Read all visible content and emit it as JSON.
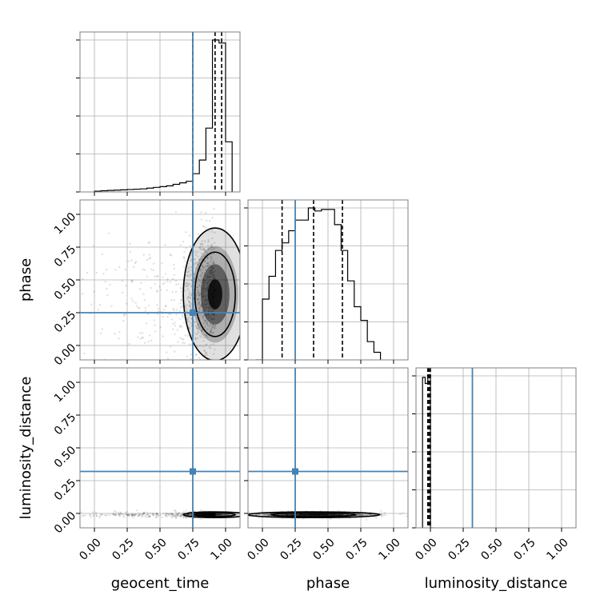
{
  "chart_data": {
    "type": "corner",
    "parameters": [
      "geocent_time",
      "phase",
      "luminosity_distance"
    ],
    "axis_labels": {
      "geocent_time": "geocent_time",
      "phase": "phase",
      "luminosity_distance": "luminosity_distance"
    },
    "tick_values": [
      0.0,
      0.25,
      0.5,
      0.75,
      1.0
    ],
    "tick_labels": [
      "0.00",
      "0.25",
      "0.50",
      "0.75",
      "1.00"
    ],
    "axis_ranges": {
      "geocent_time": [
        -0.11,
        1.11
      ],
      "phase": [
        -0.11,
        1.11
      ],
      "luminosity_distance": [
        -0.11,
        1.11
      ]
    },
    "truths": {
      "geocent_time": 0.75,
      "phase": 0.25,
      "luminosity_distance": 0.32
    },
    "quantiles": {
      "geocent_time": [
        0.75,
        0.92,
        0.97
      ],
      "phase": [
        0.15,
        0.39,
        0.61
      ],
      "luminosity_distance": [
        -0.02,
        -0.01,
        0.0
      ]
    },
    "histograms": {
      "geocent_time": {
        "bin_edges": [
          0.0,
          0.05,
          0.1,
          0.15,
          0.2,
          0.25,
          0.3,
          0.35,
          0.4,
          0.45,
          0.5,
          0.55,
          0.6,
          0.65,
          0.7,
          0.75,
          0.8,
          0.85,
          0.9,
          0.95,
          1.0,
          1.05
        ],
        "counts": [
          0.005,
          0.008,
          0.01,
          0.012,
          0.014,
          0.016,
          0.018,
          0.02,
          0.025,
          0.03,
          0.035,
          0.04,
          0.05,
          0.06,
          0.07,
          0.12,
          0.21,
          0.42,
          1.0,
          0.98,
          0.33
        ]
      },
      "phase": {
        "bin_edges": [
          -0.05,
          0.0,
          0.05,
          0.1,
          0.15,
          0.2,
          0.25,
          0.3,
          0.35,
          0.4,
          0.45,
          0.5,
          0.55,
          0.6,
          0.65,
          0.7,
          0.75,
          0.8,
          0.85,
          0.9
        ],
        "counts": [
          0.0,
          0.4,
          0.55,
          0.72,
          0.77,
          0.85,
          0.92,
          0.92,
          1.0,
          0.98,
          0.99,
          0.99,
          0.89,
          0.72,
          0.52,
          0.35,
          0.26,
          0.12,
          0.05
        ]
      },
      "luminosity_distance": {
        "bin_edges": [
          -0.06,
          -0.04,
          -0.02,
          0.0,
          0.02
        ],
        "counts": [
          0.99,
          0.95,
          1.0,
          0.0
        ]
      }
    },
    "panels": [
      {
        "row": 0,
        "col": 0,
        "kind": "hist",
        "x": "geocent_time"
      },
      {
        "row": 1,
        "col": 0,
        "kind": "2d",
        "x": "geocent_time",
        "y": "phase"
      },
      {
        "row": 1,
        "col": 1,
        "kind": "hist",
        "x": "phase"
      },
      {
        "row": 2,
        "col": 0,
        "kind": "2d",
        "x": "geocent_time",
        "y": "luminosity_distance"
      },
      {
        "row": 2,
        "col": 1,
        "kind": "2d",
        "x": "phase",
        "y": "luminosity_distance"
      },
      {
        "row": 2,
        "col": 2,
        "kind": "hist",
        "x": "luminosity_distance"
      }
    ],
    "grid": true,
    "colors": {
      "truth": "#4682b4",
      "hist": "#000000",
      "quantile": "#000000",
      "grid": "#b0b0b0",
      "frame": "#808080",
      "density": "#000000"
    }
  }
}
